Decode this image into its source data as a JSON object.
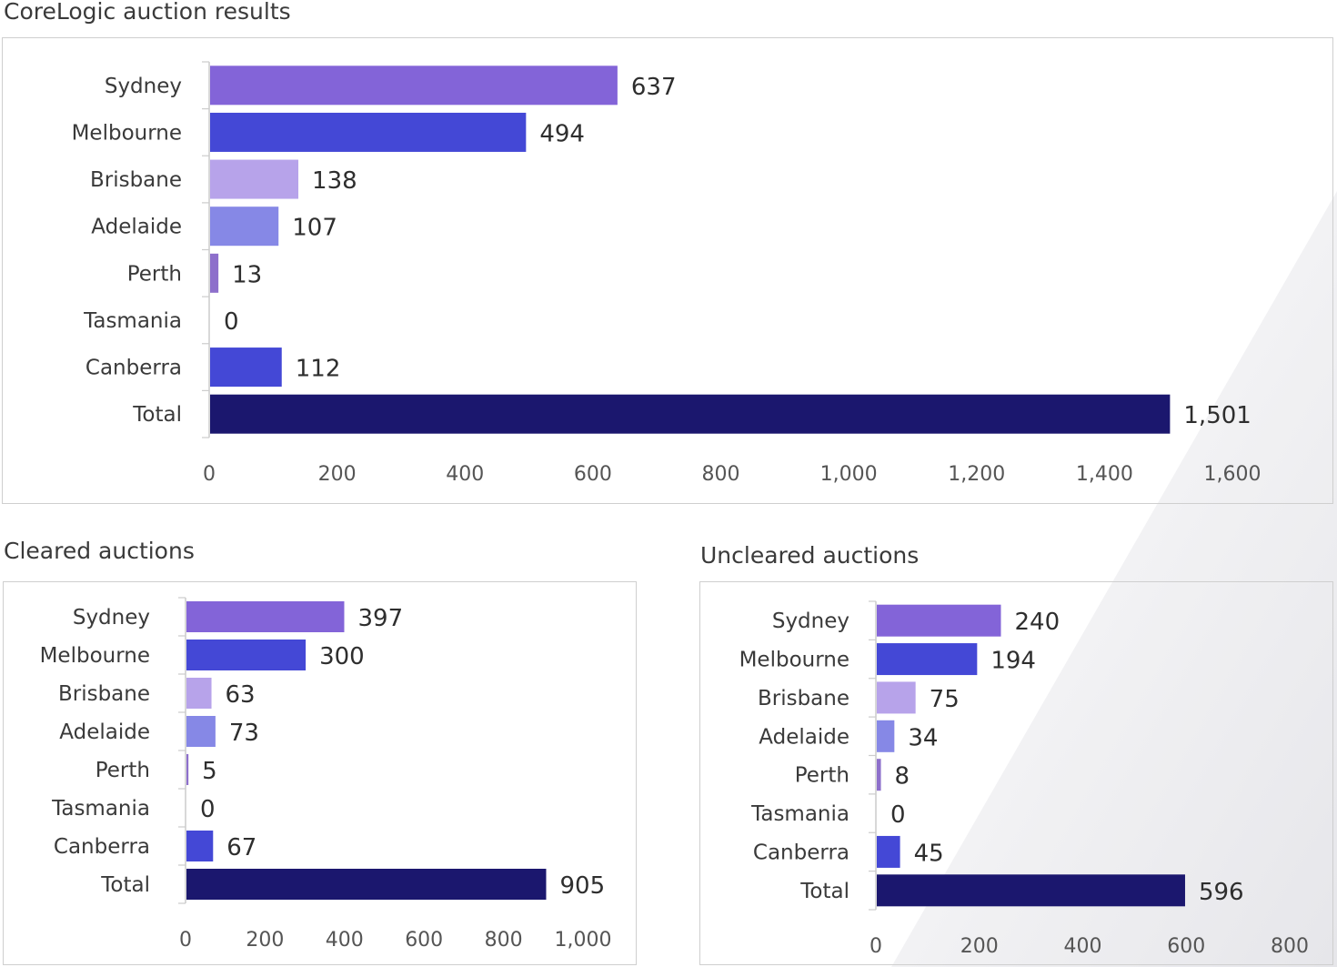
{
  "colors": {
    "Sydney": "#8364d8",
    "Melbourne": "#4448d6",
    "Brisbane": "#b7a3ea",
    "Adelaide": "#8688e6",
    "Perth": "#8d6fcb",
    "Tasmania": "#9b9bd6",
    "Canberra": "#4448d6",
    "Total": "#1b176e"
  },
  "chart_data": [
    {
      "id": "all",
      "type": "bar",
      "orientation": "horizontal",
      "title": "CoreLogic auction results",
      "categories": [
        "Sydney",
        "Melbourne",
        "Brisbane",
        "Adelaide",
        "Perth",
        "Tasmania",
        "Canberra",
        "Total"
      ],
      "values": [
        637,
        494,
        138,
        107,
        13,
        0,
        112,
        1501
      ],
      "value_labels": [
        "637",
        "494",
        "138",
        "107",
        "13",
        "0",
        "112",
        "1,501"
      ],
      "xlim": [
        0,
        1600
      ],
      "ticks": [
        0,
        200,
        400,
        600,
        800,
        1000,
        1200,
        1400,
        1600
      ],
      "tick_labels": [
        "0",
        "200",
        "400",
        "600",
        "800",
        "1,000",
        "1,200",
        "1,400",
        "1,600"
      ],
      "grid": false
    },
    {
      "id": "cleared",
      "type": "bar",
      "orientation": "horizontal",
      "title": "Cleared auctions",
      "categories": [
        "Sydney",
        "Melbourne",
        "Brisbane",
        "Adelaide",
        "Perth",
        "Tasmania",
        "Canberra",
        "Total"
      ],
      "values": [
        397,
        300,
        63,
        73,
        5,
        0,
        67,
        905
      ],
      "value_labels": [
        "397",
        "300",
        "63",
        "73",
        "5",
        "0",
        "67",
        "905"
      ],
      "xlim": [
        0,
        1000
      ],
      "ticks": [
        0,
        200,
        400,
        600,
        800,
        1000
      ],
      "tick_labels": [
        "0",
        "200",
        "400",
        "600",
        "800",
        "1,000"
      ],
      "grid": false
    },
    {
      "id": "uncleared",
      "type": "bar",
      "orientation": "horizontal",
      "title": "Uncleared auctions",
      "categories": [
        "Sydney",
        "Melbourne",
        "Brisbane",
        "Adelaide",
        "Perth",
        "Tasmania",
        "Canberra",
        "Total"
      ],
      "values": [
        240,
        194,
        75,
        34,
        8,
        0,
        45,
        596
      ],
      "value_labels": [
        "240",
        "194",
        "75",
        "34",
        "8",
        "0",
        "45",
        "596"
      ],
      "xlim": [
        0,
        800
      ],
      "ticks": [
        0,
        200,
        400,
        600,
        800
      ],
      "tick_labels": [
        "0",
        "200",
        "400",
        "600",
        "800"
      ],
      "grid": false
    }
  ]
}
